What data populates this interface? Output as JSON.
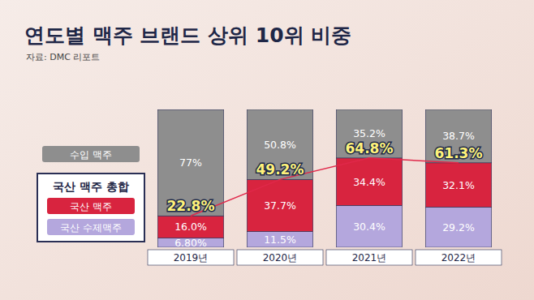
{
  "chart_data": {
    "type": "bar",
    "title": "연도별 맥주 브랜드 상위 10위 비중",
    "subtitle": "자료: DMC 리포트",
    "categories": [
      "2019년",
      "2020년",
      "2021년",
      "2022년"
    ],
    "stacked": true,
    "data_labels": true,
    "tick_labels": "x",
    "legend": "left",
    "ylim": [
      0,
      100
    ],
    "series": [
      {
        "name": "국산 수제맥주",
        "color": "#b4a7dd",
        "values": [
          6.8,
          11.5,
          30.4,
          29.2
        ],
        "value_labels": [
          "6.80%",
          "11.5%",
          "30.4%",
          "29.2%"
        ]
      },
      {
        "name": "국산 맥주",
        "color": "#d8243f",
        "values": [
          16.0,
          37.7,
          34.4,
          32.1
        ],
        "value_labels": [
          "16.0%",
          "37.7%",
          "34.4%",
          "32.1%"
        ]
      },
      {
        "name": "수입 맥주",
        "color": "#8e8e8e",
        "values": [
          77,
          50.8,
          35.2,
          38.7
        ],
        "value_labels": [
          "77%",
          "50.8%",
          "35.2%",
          "38.7%"
        ]
      },
      {
        "name": "국산 맥주 총합",
        "type": "line",
        "color": "#e0284a",
        "values": [
          22.8,
          49.2,
          64.8,
          61.3
        ],
        "value_labels": [
          "22.8%",
          "49.2%",
          "64.8%",
          "61.3%"
        ]
      }
    ]
  }
}
